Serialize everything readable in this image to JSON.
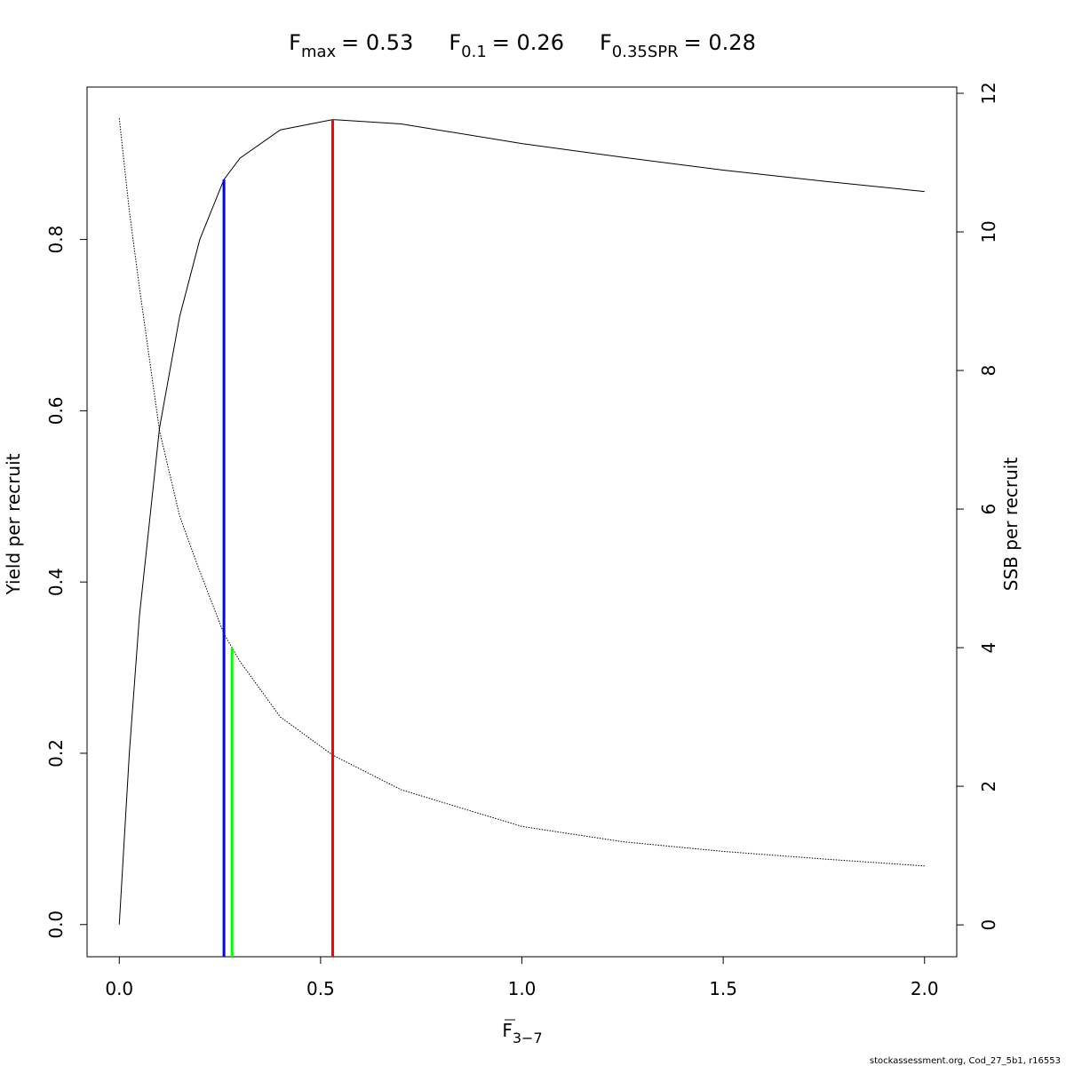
{
  "chart_data": {
    "type": "line",
    "title": [
      {
        "main": "F",
        "sub": "max",
        "rest": "= 0.53"
      },
      {
        "main": "F",
        "sub": "0.1",
        "rest": "= 0.26"
      },
      {
        "main": "F",
        "sub": "0.35SPR",
        "rest": "= 0.28"
      }
    ],
    "x_label": {
      "main": "F",
      "sub": "3−7"
    },
    "y_label": "Yield per recruit",
    "y2_label": "SSB per recruit",
    "footer": "stockassessment.org, Cod_27_5b1, r16553",
    "x": [
      0,
      0.025,
      0.05,
      0.1,
      0.15,
      0.2,
      0.26,
      0.3,
      0.4,
      0.53,
      0.7,
      1.0,
      1.25,
      1.5,
      1.75,
      2.0
    ],
    "series": [
      {
        "color": "#000000",
        "dash": false,
        "values": [
          0,
          0.2,
          0.36,
          0.58,
          0.71,
          0.8,
          0.87,
          0.895,
          0.928,
          0.94,
          0.935,
          0.912,
          0.896,
          0.881,
          0.868,
          0.856
        ]
      },
      {
        "color": "#000000",
        "dash": true,
        "axis": "y2",
        "values": [
          11.64,
          10.3,
          9.2,
          7.13,
          5.9,
          5.1,
          4.2,
          3.8,
          3.0,
          2.45,
          1.95,
          1.42,
          1.2,
          1.06,
          0.95,
          0.85
        ]
      }
    ],
    "ref_lines": [
      {
        "x": 0.26,
        "y": 0.87,
        "color": "#0000ff"
      },
      {
        "x": 0.28,
        "y": 3.99,
        "color": "#00ff00",
        "axis": "y2"
      },
      {
        "x": 0.53,
        "y": 0.94,
        "color": "#ff0000"
      }
    ],
    "xlim": [
      -0.08,
      2.08
    ],
    "xticks": [
      {
        "value": 0,
        "label": "0.0"
      },
      {
        "value": 0.5,
        "label": "0.5"
      },
      {
        "value": 1,
        "label": "1.0"
      },
      {
        "value": 1.5,
        "label": "1.5"
      },
      {
        "value": 2,
        "label": "2.0"
      }
    ],
    "ylim": [
      -0.0376,
      0.978
    ],
    "yticks": [
      {
        "value": 0,
        "label": "0.0"
      },
      {
        "value": 0.2,
        "label": "0.2"
      },
      {
        "value": 0.4,
        "label": "0.4"
      },
      {
        "value": 0.6,
        "label": "0.6"
      },
      {
        "value": 0.8,
        "label": "0.8"
      }
    ],
    "y2lim": [
      -0.46,
      12.09
    ],
    "y2ticks": [
      0,
      2,
      4,
      6,
      8,
      10,
      12
    ]
  }
}
